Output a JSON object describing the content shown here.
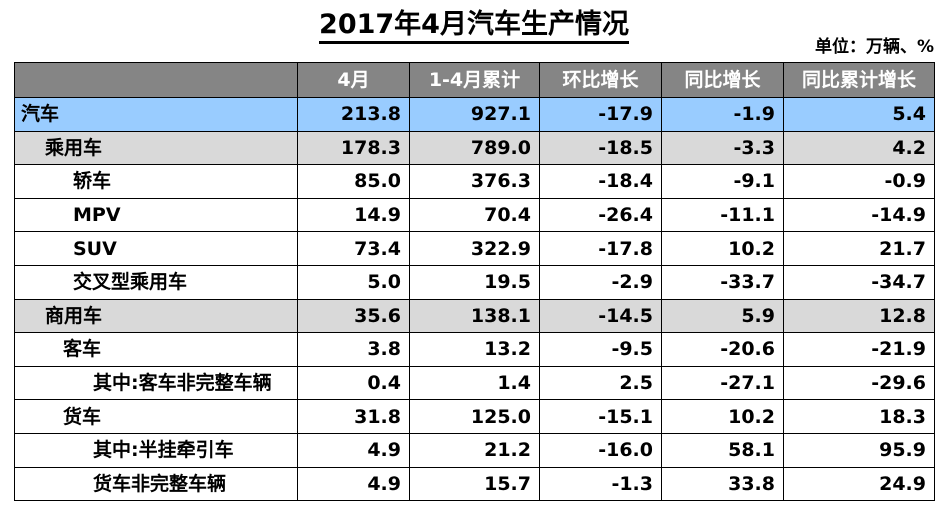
{
  "title": "2017年4月汽车生产情况",
  "unit": "单位：万辆、%",
  "columns": [
    "",
    "4月",
    "1-4月累计",
    "环比增长",
    "同比增长",
    "同比累计增长"
  ],
  "rows": [
    {
      "name": "汽车",
      "level": 0,
      "values": [
        "213.8",
        "927.1",
        "-17.9",
        "-1.9",
        "5.4"
      ]
    },
    {
      "name": "乘用车",
      "level": 1,
      "values": [
        "178.3",
        "789.0",
        "-18.5",
        "-3.3",
        "4.2"
      ]
    },
    {
      "name": "轿车",
      "level": 2,
      "values": [
        "85.0",
        "376.3",
        "-18.4",
        "-9.1",
        "-0.9"
      ]
    },
    {
      "name": "MPV",
      "level": 2,
      "values": [
        "14.9",
        "70.4",
        "-26.4",
        "-11.1",
        "-14.9"
      ]
    },
    {
      "name": "SUV",
      "level": 2,
      "values": [
        "73.4",
        "322.9",
        "-17.8",
        "10.2",
        "21.7"
      ]
    },
    {
      "name": "交叉型乘用车",
      "level": 2,
      "values": [
        "5.0",
        "19.5",
        "-2.9",
        "-33.7",
        "-34.7"
      ]
    },
    {
      "name": "商用车",
      "level": 1,
      "values": [
        "35.6",
        "138.1",
        "-14.5",
        "5.9",
        "12.8"
      ]
    },
    {
      "name": "客车",
      "level": 3,
      "values": [
        "3.8",
        "13.2",
        "-9.5",
        "-20.6",
        "-21.9"
      ]
    },
    {
      "name": "其中:客车非完整车辆",
      "level": 4,
      "values": [
        "0.4",
        "1.4",
        "2.5",
        "-27.1",
        "-29.6"
      ]
    },
    {
      "name": "货车",
      "level": 3,
      "values": [
        "31.8",
        "125.0",
        "-15.1",
        "10.2",
        "18.3"
      ]
    },
    {
      "name": "其中:半挂牵引车",
      "level": 4,
      "values": [
        "4.9",
        "21.2",
        "-16.0",
        "58.1",
        "95.9"
      ]
    },
    {
      "name": "货车非完整车辆",
      "level": 4,
      "values": [
        "4.9",
        "15.7",
        "-1.3",
        "33.8",
        "24.9"
      ]
    }
  ],
  "colors": {
    "header_bg": "#858585",
    "header_text": "#ffffff",
    "total_row_bg": "#99ccff",
    "category_row_bg": "#d9d9d9"
  }
}
